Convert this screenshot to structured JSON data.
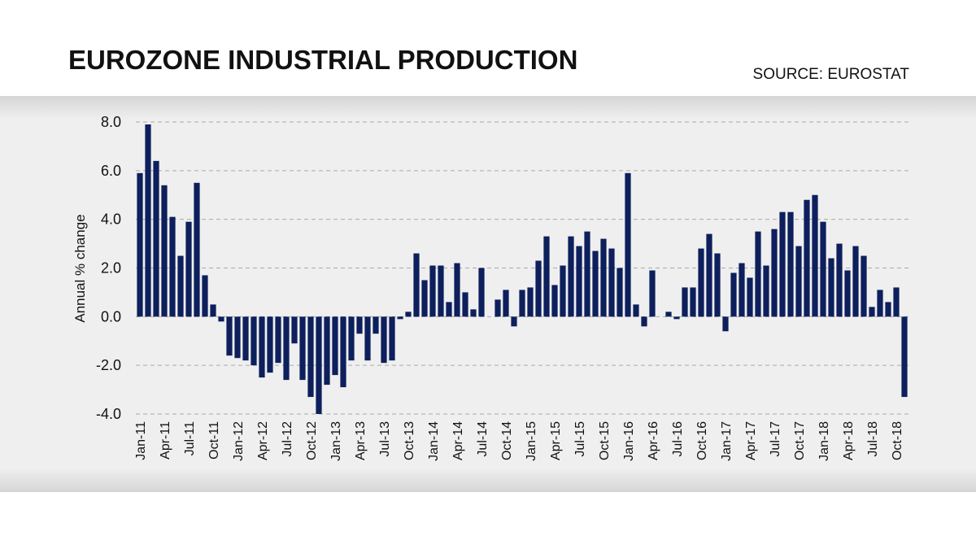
{
  "chart_data": {
    "type": "bar",
    "title": "EUROZONE INDUSTRIAL PRODUCTION",
    "source": "SOURCE: EUROSTAT",
    "y_label": "Annual % change",
    "color": "#0d1f5c",
    "grid": true,
    "categories": [
      "Jan-11",
      null,
      null,
      "Apr-11",
      null,
      null,
      "Jul-11",
      null,
      null,
      "Oct-11",
      null,
      null,
      "Jan-12",
      null,
      null,
      "Apr-12",
      null,
      null,
      "Jul-12",
      null,
      null,
      "Oct-12",
      null,
      null,
      "Jan-13",
      null,
      null,
      "Apr-13",
      null,
      null,
      "Jul-13",
      null,
      null,
      "Oct-13",
      null,
      null,
      "Jan-14",
      null,
      null,
      "Apr-14",
      null,
      null,
      "Jul-14",
      null,
      null,
      "Oct-14",
      null,
      null,
      "Jan-15",
      null,
      null,
      "Apr-15",
      null,
      null,
      "Jul-15",
      null,
      null,
      "Oct-15",
      null,
      null,
      "Jan-16",
      null,
      null,
      "Apr-16",
      null,
      null,
      "Jul-16",
      null,
      null,
      "Oct-16",
      null,
      null,
      "Jan-17",
      null,
      null,
      "Apr-17",
      null,
      null,
      "Jul-17",
      null,
      null,
      "Oct-17",
      null,
      null,
      "Jan-18",
      null,
      null,
      "Apr-18",
      null,
      null,
      "Jul-18",
      null,
      null,
      "Oct-18",
      null
    ],
    "values": [
      5.9,
      7.9,
      6.4,
      5.4,
      4.1,
      2.5,
      3.9,
      5.5,
      1.7,
      0.5,
      -0.2,
      -1.6,
      -1.7,
      -1.8,
      -2.0,
      -2.5,
      -2.3,
      -1.9,
      -2.6,
      -1.1,
      -2.6,
      -3.3,
      -4.0,
      -2.8,
      -2.4,
      -2.9,
      -1.8,
      -0.7,
      -1.8,
      -0.7,
      -1.9,
      -1.8,
      -0.1,
      0.2,
      2.6,
      1.5,
      2.1,
      2.1,
      0.6,
      2.2,
      1.0,
      0.3,
      2.0,
      0.0,
      0.7,
      1.1,
      -0.4,
      1.1,
      1.2,
      2.3,
      3.3,
      1.3,
      2.1,
      3.3,
      2.9,
      3.5,
      2.7,
      3.2,
      2.8,
      2.0,
      5.9,
      0.5,
      -0.4,
      1.9,
      0.0,
      0.2,
      -0.1,
      1.2,
      1.2,
      2.8,
      3.4,
      2.6,
      -0.6,
      1.8,
      2.2,
      1.6,
      3.5,
      2.1,
      3.6,
      4.3,
      4.3,
      2.9,
      4.8,
      5.0,
      3.9,
      2.4,
      3.0,
      1.9,
      2.9,
      2.5,
      0.4,
      1.1,
      0.6,
      1.2,
      -3.3
    ],
    "ylim": [
      -4,
      8
    ],
    "yticks": [
      {
        "value": -4,
        "label": "-4.0"
      },
      {
        "value": -2,
        "label": "-2.0"
      },
      {
        "value": 0,
        "label": "0.0"
      },
      {
        "value": 2,
        "label": "2.0"
      },
      {
        "value": 4,
        "label": "4.0"
      },
      {
        "value": 6,
        "label": "6.0"
      },
      {
        "value": 8,
        "label": "8.0"
      }
    ]
  }
}
